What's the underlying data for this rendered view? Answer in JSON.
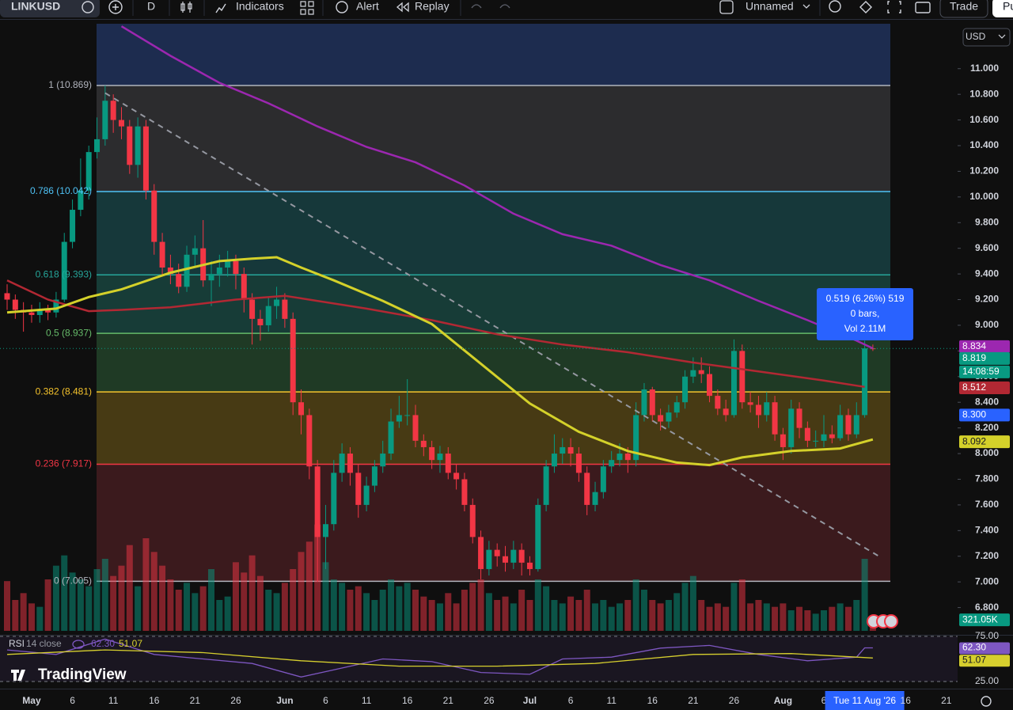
{
  "toolbar": {
    "symbol": "LINKUSD",
    "interval": "D",
    "indicators": "Indicators",
    "alert": "Alert",
    "replay": "Replay",
    "layout": "Unnamed",
    "trade": "Trade",
    "publish": "Pu"
  },
  "currency": "USD",
  "logo": "TradingView",
  "chart_data": {
    "type": "candlestick",
    "categories": [
      null,
      null,
      null,
      "May",
      null,
      null,
      null,
      null,
      "6",
      null,
      null,
      null,
      null,
      "11",
      null,
      null,
      null,
      null,
      "16",
      null,
      null,
      null,
      null,
      "21",
      null,
      null,
      null,
      null,
      "26",
      null,
      null,
      null,
      null,
      null,
      "Jun",
      null,
      null,
      null,
      null,
      "6",
      null,
      null,
      null,
      null,
      "11",
      null,
      null,
      null,
      null,
      "16",
      null,
      null,
      null,
      null,
      "21",
      null,
      null,
      null,
      null,
      "26",
      null,
      null,
      null,
      null,
      "Jul",
      null,
      null,
      null,
      null,
      "6",
      null,
      null,
      null,
      null,
      "11",
      null,
      null,
      null,
      null,
      "16",
      null,
      null,
      null,
      null,
      "21",
      null,
      null,
      null,
      null,
      "26",
      null,
      null,
      null,
      null,
      null,
      "Aug",
      null,
      null,
      null,
      null,
      "6",
      null,
      null,
      null,
      null,
      "Tue 11 Aug '26",
      null,
      null,
      null,
      null,
      "16",
      null,
      null,
      null,
      null,
      "21",
      null
    ],
    "ohlc": [
      [
        9.25,
        9.32,
        9.12,
        9.2
      ],
      [
        9.2,
        9.24,
        9.05,
        9.12
      ],
      [
        9.12,
        9.18,
        8.95,
        9.1
      ],
      [
        9.1,
        9.16,
        9.02,
        9.08
      ],
      [
        9.08,
        9.18,
        9.02,
        9.12
      ],
      [
        9.12,
        9.16,
        9.04,
        9.1
      ],
      [
        9.1,
        9.26,
        9.06,
        9.2
      ],
      [
        9.2,
        9.72,
        9.18,
        9.65
      ],
      [
        9.65,
        9.98,
        9.6,
        9.9
      ],
      [
        9.9,
        10.3,
        9.85,
        10.05
      ],
      [
        10.05,
        10.4,
        9.98,
        10.35
      ],
      [
        10.35,
        10.62,
        10.3,
        10.45
      ],
      [
        10.45,
        10.869,
        10.4,
        10.75
      ],
      [
        10.75,
        10.8,
        10.5,
        10.6
      ],
      [
        10.6,
        10.7,
        10.45,
        10.55
      ],
      [
        10.55,
        10.6,
        10.18,
        10.25
      ],
      [
        10.25,
        10.62,
        10.15,
        10.55
      ],
      [
        10.55,
        10.6,
        9.98,
        10.05
      ],
      [
        10.05,
        10.1,
        9.55,
        9.65
      ],
      [
        9.65,
        9.72,
        9.38,
        9.45
      ],
      [
        9.45,
        9.55,
        9.32,
        9.4
      ],
      [
        9.4,
        9.48,
        9.25,
        9.3
      ],
      [
        9.3,
        9.62,
        9.26,
        9.55
      ],
      [
        9.55,
        9.7,
        9.45,
        9.6
      ],
      [
        9.6,
        9.82,
        9.3,
        9.35
      ],
      [
        9.35,
        9.5,
        9.15,
        9.4
      ],
      [
        9.4,
        9.55,
        9.3,
        9.45
      ],
      [
        9.45,
        9.58,
        9.38,
        9.5
      ],
      [
        9.5,
        9.55,
        9.28,
        9.4
      ],
      [
        9.4,
        9.45,
        9.1,
        9.2
      ],
      [
        9.2,
        9.25,
        8.85,
        9.05
      ],
      [
        9.05,
        9.12,
        8.88,
        9.0
      ],
      [
        9.0,
        9.22,
        8.95,
        9.15
      ],
      [
        9.15,
        9.3,
        9.05,
        9.2
      ],
      [
        9.2,
        9.25,
        8.98,
        9.05
      ],
      [
        9.05,
        9.1,
        8.3,
        8.4
      ],
      [
        8.4,
        8.5,
        8.15,
        8.3
      ],
      [
        8.3,
        8.35,
        7.8,
        7.9
      ],
      [
        7.9,
        7.95,
        7.0,
        7.35
      ],
      [
        7.35,
        7.6,
        7.1,
        7.45
      ],
      [
        7.45,
        7.95,
        7.4,
        7.85
      ],
      [
        7.85,
        8.08,
        7.78,
        8.0
      ],
      [
        8.0,
        8.05,
        7.75,
        7.85
      ],
      [
        7.85,
        7.92,
        7.5,
        7.6
      ],
      [
        7.6,
        7.82,
        7.55,
        7.75
      ],
      [
        7.75,
        7.95,
        7.7,
        7.9
      ],
      [
        7.9,
        8.1,
        7.85,
        8.0
      ],
      [
        8.0,
        8.35,
        7.95,
        8.25
      ],
      [
        8.25,
        8.45,
        8.2,
        8.3
      ],
      [
        8.3,
        8.58,
        8.22,
        8.3
      ],
      [
        8.3,
        8.38,
        8.05,
        8.1
      ],
      [
        8.1,
        8.15,
        7.98,
        8.05
      ],
      [
        8.05,
        8.1,
        7.88,
        7.95
      ],
      [
        7.95,
        8.06,
        7.85,
        8.0
      ],
      [
        8.0,
        8.05,
        7.8,
        7.85
      ],
      [
        7.85,
        7.92,
        7.72,
        7.8
      ],
      [
        7.8,
        7.85,
        7.55,
        7.6
      ],
      [
        7.6,
        7.65,
        7.3,
        7.35
      ],
      [
        7.35,
        7.4,
        7.02,
        7.1
      ],
      [
        7.1,
        7.32,
        7.05,
        7.25
      ],
      [
        7.25,
        7.3,
        7.12,
        7.2
      ],
      [
        7.2,
        7.28,
        7.08,
        7.15
      ],
      [
        7.15,
        7.32,
        7.1,
        7.25
      ],
      [
        7.25,
        7.3,
        7.05,
        7.15
      ],
      [
        7.15,
        7.2,
        7.05,
        7.1
      ],
      [
        7.1,
        7.65,
        7.08,
        7.6
      ],
      [
        7.6,
        7.95,
        7.55,
        7.9
      ],
      [
        7.9,
        8.15,
        7.85,
        8.0
      ],
      [
        8.0,
        8.12,
        7.92,
        8.05
      ],
      [
        8.05,
        8.12,
        7.9,
        8.0
      ],
      [
        8.0,
        8.05,
        7.78,
        7.85
      ],
      [
        7.85,
        7.9,
        7.52,
        7.6
      ],
      [
        7.6,
        7.78,
        7.55,
        7.7
      ],
      [
        7.7,
        7.95,
        7.65,
        7.9
      ],
      [
        7.9,
        8.02,
        7.85,
        7.95
      ],
      [
        7.95,
        8.08,
        7.9,
        8.0
      ],
      [
        8.0,
        8.05,
        7.85,
        7.95
      ],
      [
        7.95,
        8.4,
        7.9,
        8.3
      ],
      [
        8.3,
        8.55,
        8.25,
        8.5
      ],
      [
        8.5,
        8.52,
        8.25,
        8.3
      ],
      [
        8.3,
        8.35,
        8.18,
        8.25
      ],
      [
        8.25,
        8.38,
        8.2,
        8.32
      ],
      [
        8.32,
        8.45,
        8.28,
        8.4
      ],
      [
        8.4,
        8.65,
        8.35,
        8.6
      ],
      [
        8.6,
        8.75,
        8.55,
        8.65
      ],
      [
        8.65,
        8.75,
        8.55,
        8.62
      ],
      [
        8.62,
        8.68,
        8.4,
        8.45
      ],
      [
        8.45,
        8.5,
        8.3,
        8.35
      ],
      [
        8.35,
        8.42,
        8.25,
        8.3
      ],
      [
        8.3,
        8.89,
        8.28,
        8.8
      ],
      [
        8.8,
        8.85,
        8.35,
        8.4
      ],
      [
        8.4,
        8.48,
        8.32,
        8.38
      ],
      [
        8.38,
        8.45,
        8.2,
        8.3
      ],
      [
        8.3,
        8.48,
        8.25,
        8.4
      ],
      [
        8.4,
        8.45,
        8.1,
        8.15
      ],
      [
        8.15,
        8.2,
        7.95,
        8.05
      ],
      [
        8.05,
        8.42,
        8.0,
        8.35
      ],
      [
        8.35,
        8.4,
        8.12,
        8.2
      ],
      [
        8.2,
        8.25,
        8.05,
        8.1
      ],
      [
        8.1,
        8.18,
        8.05,
        8.1
      ],
      [
        8.1,
        8.3,
        8.05,
        8.15
      ],
      [
        8.15,
        8.22,
        8.08,
        8.12
      ],
      [
        8.12,
        8.38,
        8.1,
        8.3
      ],
      [
        8.3,
        8.35,
        8.1,
        8.15
      ],
      [
        8.15,
        8.4,
        8.12,
        8.3
      ],
      [
        8.3,
        8.88,
        8.28,
        8.82
      ],
      [
        8.82,
        8.85,
        8.8,
        8.819
      ],
      null,
      null,
      null,
      null,
      null,
      null,
      null,
      null,
      null,
      null
    ],
    "volume": [
      1450,
      900,
      1100,
      800,
      700,
      1500,
      1900,
      2200,
      1700,
      1500,
      1300,
      1800,
      2100,
      1600,
      1900,
      2500,
      1300,
      2700,
      2300,
      1900,
      1500,
      1200,
      1400,
      1100,
      1300,
      1800,
      900,
      1000,
      2000,
      1700,
      2200,
      1600,
      1200,
      1100,
      1400,
      1800,
      2300,
      2600,
      3100,
      2000,
      1500,
      1400,
      1200,
      1300,
      1100,
      900,
      1200,
      1500,
      1300,
      1400,
      1200,
      1000,
      900,
      800,
      1100,
      800,
      1200,
      1400,
      1500,
      1100,
      900,
      1000,
      800,
      1200,
      900,
      1500,
      1300,
      900,
      800,
      1000,
      900,
      1200,
      800,
      900,
      700,
      800,
      900,
      1500,
      1200,
      900,
      800,
      900,
      1100,
      1400,
      1600,
      900,
      700,
      800,
      700,
      1400,
      1500,
      800,
      900,
      800,
      700,
      800,
      600,
      700,
      600,
      500,
      600,
      700,
      800,
      700,
      900,
      2100,
      321.05,
      null,
      null,
      null,
      null,
      null,
      null,
      null,
      null,
      null,
      null
    ],
    "vlim": [
      0,
      17700
    ],
    "volume_label": "321.05K",
    "ylim": [
      6.6,
      11.35
    ],
    "yticks": [
      {
        "value": 6.8,
        "label": "6.800"
      },
      {
        "value": 7.0,
        "label": "7.000"
      },
      {
        "value": 7.2,
        "label": "7.200"
      },
      {
        "value": 7.4,
        "label": "7.400"
      },
      {
        "value": 7.6,
        "label": "7.600"
      },
      {
        "value": 7.8,
        "label": "7.800"
      },
      {
        "value": 8.0,
        "label": "8.000"
      },
      {
        "value": 8.2,
        "label": "8.200"
      },
      {
        "value": 8.4,
        "label": "8.400"
      },
      {
        "value": 8.6,
        "label": "8.600"
      },
      {
        "value": 8.8,
        "label": "8.800"
      },
      {
        "value": 9.0,
        "label": "9.000"
      },
      {
        "value": 9.2,
        "label": "9.200"
      },
      {
        "value": 9.4,
        "label": "9.400"
      },
      {
        "value": 9.6,
        "label": "9.600"
      },
      {
        "value": 9.8,
        "label": "9.800"
      },
      {
        "value": 10.0,
        "label": "10.000"
      },
      {
        "value": 10.2,
        "label": "10.200"
      },
      {
        "value": 10.4,
        "label": "10.400"
      },
      {
        "value": 10.6,
        "label": "10.600"
      },
      {
        "value": 10.8,
        "label": "10.800"
      },
      {
        "value": 11.0,
        "label": "11.000"
      }
    ],
    "grid": false,
    "up_color": "#089981",
    "down_color": "#f23645",
    "fib": [
      {
        "label": "1 (10.869)",
        "value": 10.869,
        "color": "#b2b5be",
        "fill": "#1d2c4f"
      },
      {
        "label": "0.786 (10.042)",
        "value": 10.042,
        "color": "#4fc3f7",
        "fill": "#2c2c2e"
      },
      {
        "label": "0.618 (9.393)",
        "value": 9.393,
        "color": "#26a69a",
        "fill": "#16383a"
      },
      {
        "label": "0.5 (8.937)",
        "value": 8.937,
        "color": "#66bb6a",
        "fill": "#173c37"
      },
      {
        "label": "0.382 (8.481)",
        "value": 8.481,
        "color": "#f5c32c",
        "fill": "#1f3a25"
      },
      {
        "label": "0.236 (7.917)",
        "value": 7.917,
        "color": "#f23645",
        "fill": "#473a14"
      },
      {
        "label": "0 (7.005)",
        "value": 7.005,
        "color": "#b2b5be",
        "fill": "#3b1a1d"
      }
    ],
    "trendline": {
      "x": [
        12,
        107
      ],
      "values": [
        10.81,
        7.19
      ],
      "color": "#9598a1"
    },
    "series": [
      {
        "color": "#9c27b0",
        "x": [
          14,
          20,
          26,
          32,
          38,
          44,
          50,
          56,
          62,
          68,
          74,
          80,
          86,
          92,
          98,
          104,
          106
        ],
        "values": [
          11.33,
          11.1,
          10.89,
          10.73,
          10.55,
          10.39,
          10.27,
          10.09,
          9.87,
          9.71,
          9.62,
          9.47,
          9.35,
          9.19,
          9.04,
          8.88,
          8.82
        ]
      },
      {
        "color": "#b22833",
        "x": [
          0,
          5,
          10,
          14,
          20,
          28,
          34,
          44,
          52,
          60,
          68,
          76,
          84,
          92,
          100,
          105
        ],
        "values": [
          9.35,
          9.2,
          9.11,
          9.12,
          9.14,
          9.2,
          9.23,
          9.13,
          9.04,
          8.93,
          8.85,
          8.79,
          8.71,
          8.64,
          8.57,
          8.52
        ]
      },
      {
        "color": "#d4d12a",
        "x": [
          0,
          6,
          10,
          14,
          20,
          26,
          30,
          33,
          36,
          40,
          46,
          52,
          58,
          64,
          70,
          76,
          82,
          86,
          90,
          96,
          102,
          106
        ],
        "values": [
          9.1,
          9.13,
          9.22,
          9.28,
          9.41,
          9.5,
          9.52,
          9.53,
          9.45,
          9.35,
          9.19,
          9.01,
          8.7,
          8.39,
          8.17,
          8.02,
          7.93,
          7.91,
          7.97,
          8.02,
          8.04,
          8.11
        ]
      }
    ],
    "price_labels": [
      {
        "value": 8.834,
        "label": "8.834",
        "color": "#9c27b0"
      },
      {
        "value": 8.819,
        "label": "8.819",
        "color": "#089981"
      },
      {
        "label": "14:08:59",
        "color": "#089981"
      },
      {
        "value": 8.512,
        "label": "8.512",
        "color": "#b22833"
      },
      {
        "value": 8.3,
        "label": "8.300",
        "color": "#2962ff"
      },
      {
        "value": 8.092,
        "label": "8.092",
        "color": "#d4d12a"
      }
    ],
    "tooltip": [
      "0.519 (6.26%) 519",
      "0 bars,",
      "Vol 2.11M"
    ],
    "rsi": {
      "title": "RSI",
      "params": "14 close",
      "ylim": [
        25,
        75
      ],
      "yticks": [
        {
          "value": 75,
          "label": "75.00"
        },
        {
          "value": 25,
          "label": "25.00"
        }
      ],
      "series": [
        {
          "color": "#7e57c2",
          "x": [
            0,
            6,
            12,
            18,
            24,
            30,
            36,
            40,
            46,
            52,
            58,
            64,
            68,
            74,
            80,
            86,
            92,
            98,
            104,
            105,
            106
          ],
          "values": [
            60,
            55,
            72,
            55,
            50,
            45,
            30,
            38,
            50,
            47,
            35,
            33,
            50,
            52,
            62,
            65,
            55,
            48,
            52,
            62.3,
            62.3
          ],
          "value_label": "62.30"
        },
        {
          "color": "#d6cf2e",
          "x": [
            0,
            12,
            24,
            36,
            48,
            60,
            72,
            84,
            96,
            106
          ],
          "values": [
            55,
            60,
            57,
            48,
            42,
            42,
            45,
            55,
            56,
            51.07
          ],
          "value_label": "51.07"
        }
      ]
    }
  }
}
